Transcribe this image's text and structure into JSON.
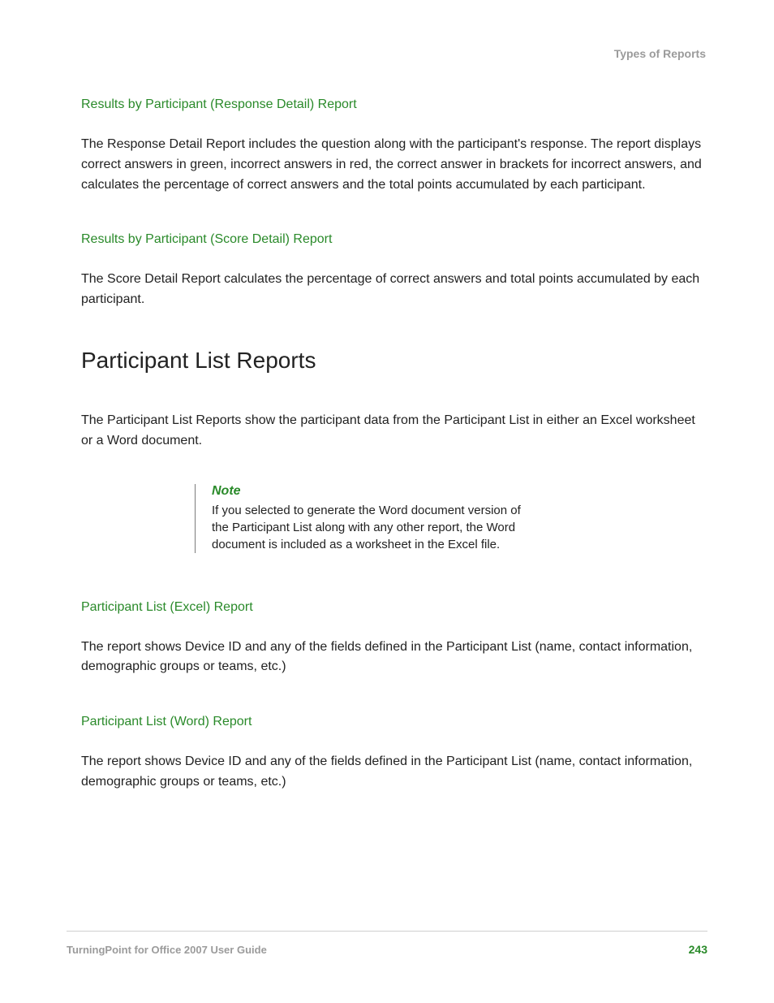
{
  "colors": {
    "accent_green": "#2a8a2a",
    "muted_gray": "#9b9b9b",
    "body_text": "#222222",
    "rule": "#d0d0d0",
    "note_rule": "#7a7a7a",
    "background": "#ffffff"
  },
  "typography": {
    "body_fontsize": 16,
    "heading_fontsize": 28,
    "subheading_fontsize": 16,
    "footer_fontsize": 13,
    "note_fontsize": 15
  },
  "header": {
    "running_title": "Types of Reports"
  },
  "sections": [
    {
      "subheading": "Results by Participant (Response Detail) Report",
      "body": "The Response Detail Report includes the question along with the participant's response. The report displays correct answers in green, incorrect answers in red, the correct answer in brackets for incorrect answers, and calculates the percentage of correct answers and the total points accumulated by each participant."
    },
    {
      "subheading": "Results by Participant (Score Detail) Report",
      "body": "The Score Detail Report calculates the percentage of correct answers and total points accumulated by each participant."
    }
  ],
  "main_heading": "Participant List Reports",
  "main_intro": "The Participant List Reports show the participant data from the Participant List in either an Excel worksheet or a Word document.",
  "note": {
    "label": "Note",
    "text": "If you selected to generate the Word document version of the Participant List along with any other report, the Word document is included as a worksheet in the Excel file."
  },
  "sections2": [
    {
      "subheading": "Participant List (Excel) Report",
      "body": "The report shows Device ID and any of the fields defined in the Participant List (name, contact information, demographic groups or teams, etc.)"
    },
    {
      "subheading": "Participant List (Word) Report",
      "body": "The report shows Device ID and any of the fields defined in the Participant List (name, contact information, demographic groups or teams, etc.)"
    }
  ],
  "footer": {
    "doc_title": "TurningPoint for Office 2007 User Guide",
    "page_number": "243"
  }
}
